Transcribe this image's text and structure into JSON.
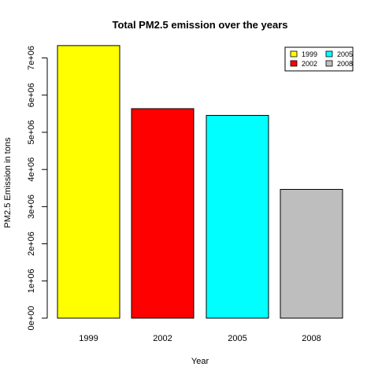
{
  "chart_data": {
    "type": "bar",
    "title": "Total PM2.5 emission over the years",
    "xlabel": "Year",
    "ylabel": "PM2.5 Emission in tons",
    "categories": [
      "1999",
      "2002",
      "2005",
      "2008"
    ],
    "values": [
      7332967,
      5635780,
      5454703,
      3464206
    ],
    "colors": [
      "#ffff00",
      "#ff0000",
      "#00ffff",
      "#bebebe"
    ],
    "ylim": [
      0,
      7500000
    ],
    "yticks": [
      0,
      1000000,
      2000000,
      3000000,
      4000000,
      5000000,
      6000000,
      7000000
    ],
    "ytick_labels": [
      "0e+00",
      "1e+06",
      "2e+06",
      "3e+06",
      "4e+06",
      "5e+06",
      "6e+06",
      "7e+06"
    ],
    "grid": false,
    "legend": {
      "placement": "top-right",
      "entries": [
        {
          "label": "1999",
          "color": "#ffff00"
        },
        {
          "label": "2005",
          "color": "#00ffff"
        },
        {
          "label": "2002",
          "color": "#ff0000"
        },
        {
          "label": "2008",
          "color": "#bebebe"
        }
      ]
    }
  }
}
